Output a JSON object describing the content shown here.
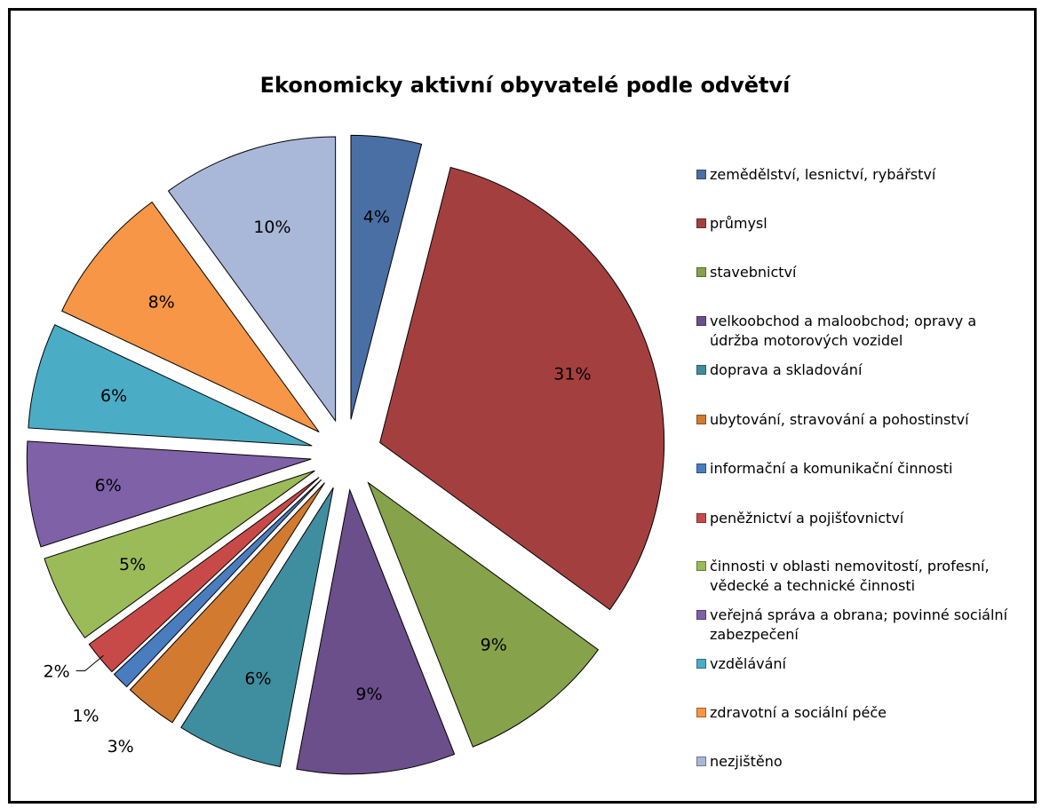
{
  "chart_data": {
    "type": "pie",
    "title": "Ekonomicky aktivní obyvatelé podle odvětví",
    "legend_position": "right",
    "exploded": true,
    "slices": [
      {
        "name": "zemědělství, lesnictví, rybářství",
        "value": 4,
        "label": "4%",
        "color": "#4a6fa5"
      },
      {
        "name": "průmysl",
        "value": 31,
        "label": "31%",
        "color": "#a3403f"
      },
      {
        "name": "stavebnictví",
        "value": 9,
        "label": "9%",
        "color": "#86a24a"
      },
      {
        "name": "velkoobchod a maloobchod; opravy a údržba motorových vozidel",
        "value": 9,
        "label": "9%",
        "color": "#6b4f8a"
      },
      {
        "name": "doprava a skladování",
        "value": 6,
        "label": "6%",
        "color": "#3f8ea0"
      },
      {
        "name": "ubytování, stravování a pohostinství",
        "value": 3,
        "label": "3%",
        "color": "#d27a30"
      },
      {
        "name": "informační a komunikační činnosti",
        "value": 1,
        "label": "1%",
        "color": "#4a7cc0"
      },
      {
        "name": "peněžnictví a pojišťovnictví",
        "value": 2,
        "label": "2%",
        "color": "#c84a48"
      },
      {
        "name": "činnosti v oblasti nemovitostí, profesní, vědecké a technické činnosti",
        "value": 5,
        "label": "5%",
        "color": "#9bbb59"
      },
      {
        "name": "veřejná správa a obrana; povinné sociální zabezpečení",
        "value": 6,
        "label": "6%",
        "color": "#7f61a7"
      },
      {
        "name": "vzdělávání",
        "value": 6,
        "label": "6%",
        "color": "#4bacc6"
      },
      {
        "name": "zdravotní a sociální péče",
        "value": 8,
        "label": "8%",
        "color": "#f79646"
      },
      {
        "name": "nezjištěno",
        "value": 10,
        "label": "10%",
        "color": "#a9b8d9"
      }
    ]
  }
}
